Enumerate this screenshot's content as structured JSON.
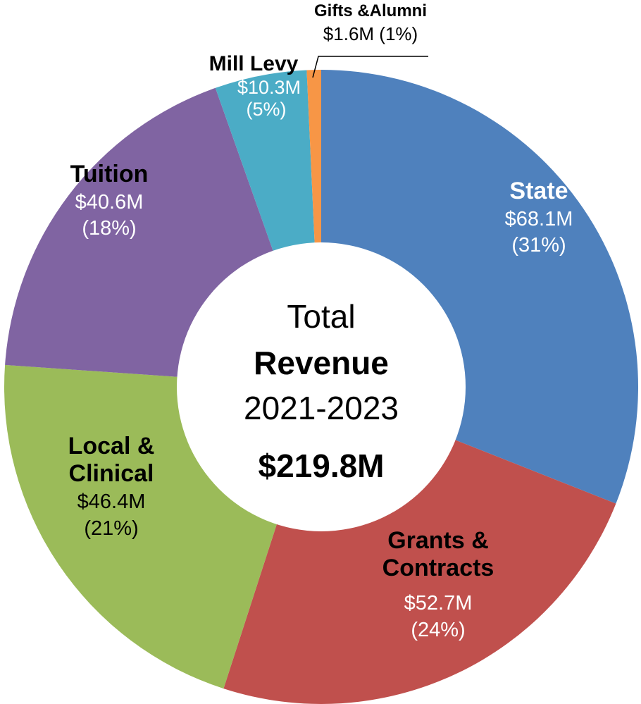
{
  "chart_data": {
    "type": "donut",
    "categories": [
      "State",
      "Grants & Contracts",
      "Local & Clinical",
      "Tuition",
      "Mill Levy",
      "Gifts &Alumni"
    ],
    "values": [
      68.1,
      52.7,
      46.4,
      40.6,
      10.3,
      1.6
    ],
    "value_labels": [
      "$68.1M",
      "$52.7M",
      "$46.4M",
      "$40.6M",
      "$10.3M",
      "$1.6M"
    ],
    "percent_labels": [
      "(31%)",
      "(24%)",
      "(21%)",
      "(18%)",
      "(5%)",
      "(1%)"
    ],
    "colors": [
      "#4f81bd",
      "#c0504d",
      "#9bbb59",
      "#8064a2",
      "#4bacc6",
      "#f79646"
    ],
    "center_text": [
      "Total",
      "Revenue",
      "2021-2023",
      "$219.8M"
    ]
  }
}
